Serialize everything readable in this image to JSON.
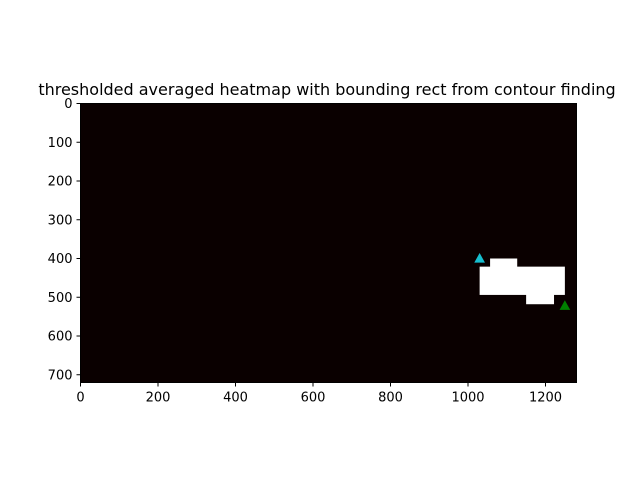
{
  "chart_data": {
    "type": "heatmap",
    "title": "thresholded averaged heatmap with bounding rect from contour finding",
    "xlabel": "",
    "ylabel": "",
    "xlim": [
      0,
      1280
    ],
    "ylim": [
      720,
      0
    ],
    "x_ticks": [
      0,
      200,
      400,
      600,
      800,
      1000,
      1200
    ],
    "y_ticks": [
      0,
      100,
      200,
      300,
      400,
      500,
      600,
      700
    ],
    "background_color": "#0a0000",
    "foreground_color": "#ffffff",
    "grid": false,
    "legend": "none",
    "white_regions": [
      {
        "x0": 1057,
        "y0": 400,
        "x1": 1127,
        "y1": 428
      },
      {
        "x0": 1030,
        "y0": 421,
        "x1": 1250,
        "y1": 494
      },
      {
        "x0": 1150,
        "y0": 490,
        "x1": 1222,
        "y1": 518
      }
    ],
    "markers": [
      {
        "name": "top-left corner",
        "x": 1030,
        "y": 400,
        "color": "#17becf",
        "shape": "triangle"
      },
      {
        "name": "bottom-right corner",
        "x": 1250,
        "y": 522,
        "color": "#008000",
        "shape": "triangle"
      }
    ]
  }
}
